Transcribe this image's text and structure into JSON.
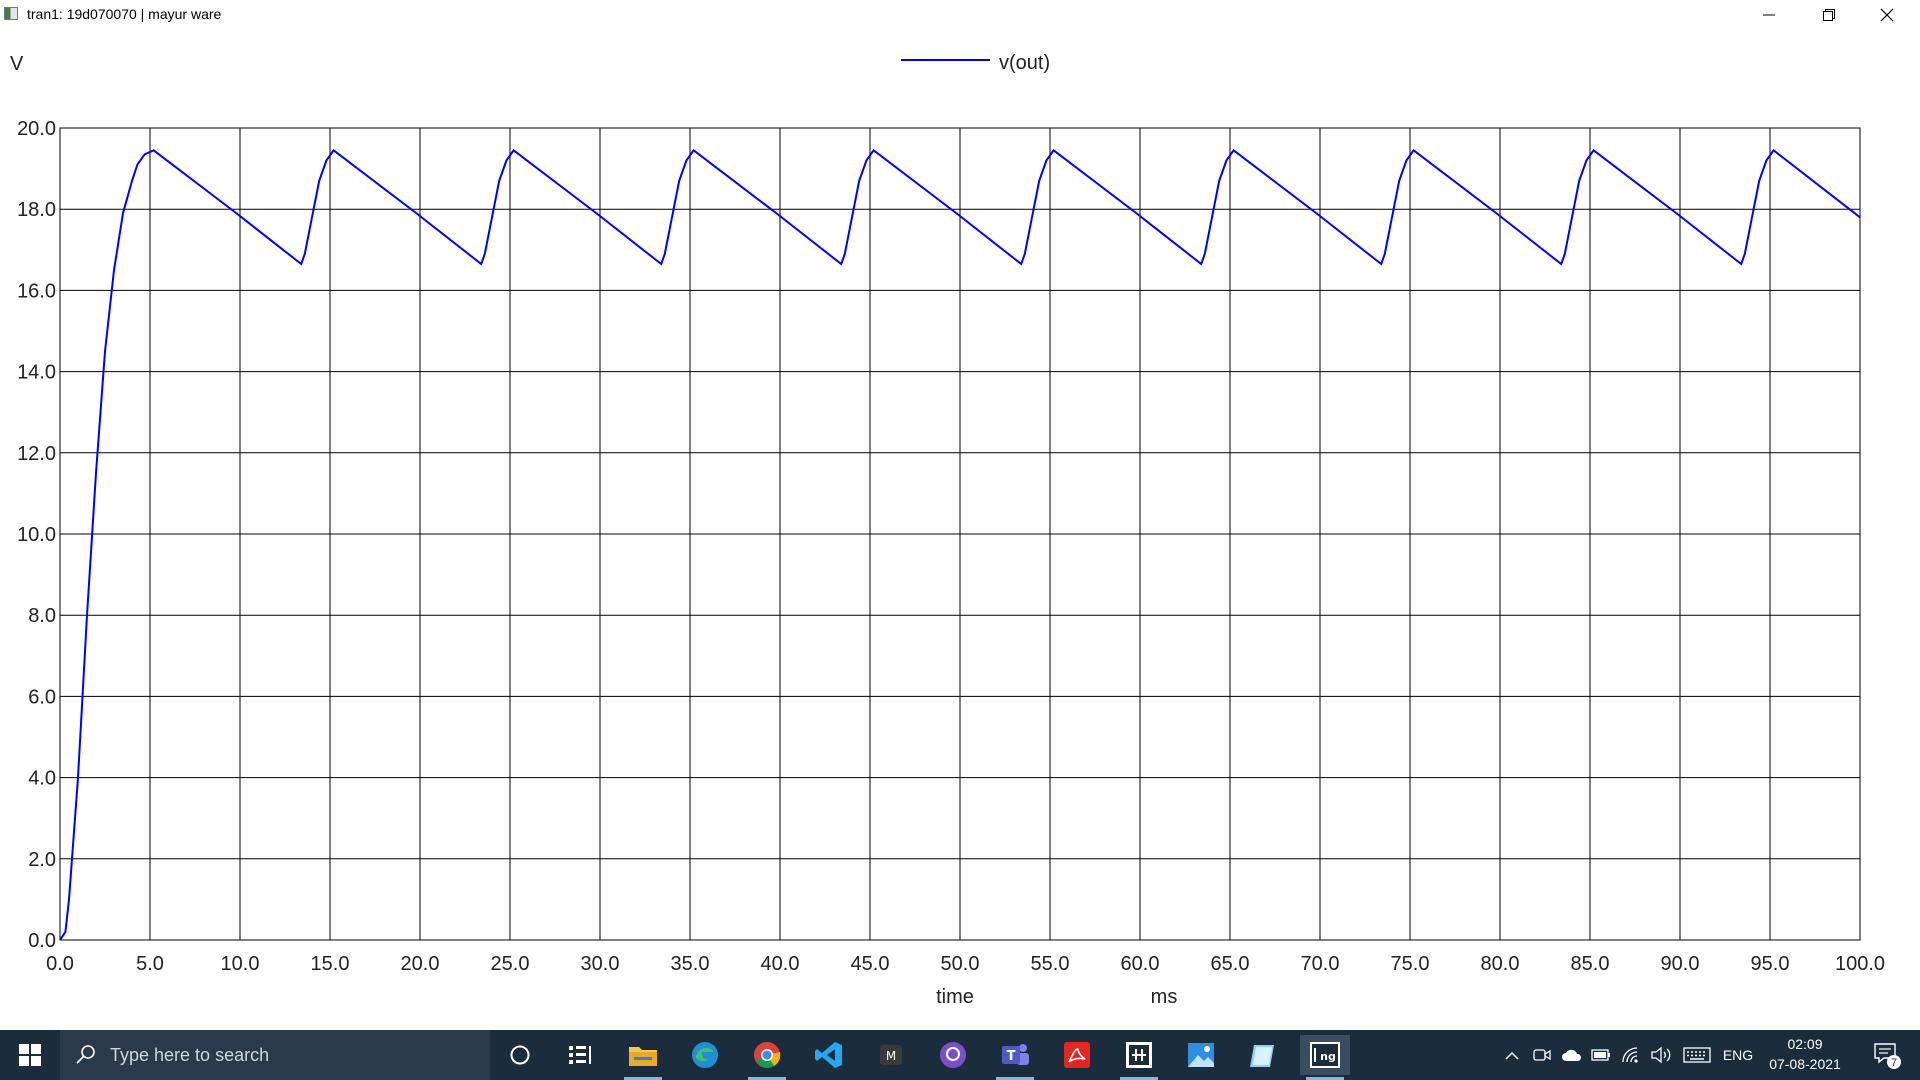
{
  "window": {
    "title": "tran1: 19d070070 | mayur ware",
    "minimize_label": "minimize",
    "maximize_label": "restore",
    "close_label": "close"
  },
  "chart_data": {
    "type": "line",
    "title": "",
    "ylabel": "V",
    "xlabel": "time",
    "xunit": "ms",
    "xlim": [
      0,
      100
    ],
    "ylim": [
      0,
      20
    ],
    "grid": true,
    "legend_position": "top-center",
    "x_ticks": [
      "0.0",
      "5.0",
      "10.0",
      "15.0",
      "20.0",
      "25.0",
      "30.0",
      "35.0",
      "40.0",
      "45.0",
      "50.0",
      "55.0",
      "60.0",
      "65.0",
      "70.0",
      "75.0",
      "80.0",
      "85.0",
      "90.0",
      "95.0",
      "100.0"
    ],
    "y_ticks": [
      "0.0",
      "2.0",
      "4.0",
      "6.0",
      "8.0",
      "10.0",
      "12.0",
      "14.0",
      "16.0",
      "18.0",
      "20.0"
    ],
    "series": [
      {
        "name": "v(out)",
        "color": "#0000ff",
        "x": [
          0.0,
          0.3,
          0.5,
          1.0,
          1.5,
          2.0,
          2.5,
          3.0,
          3.5,
          4.0,
          4.3,
          4.7,
          5.2,
          9.8,
          13.4,
          13.6,
          14.0,
          14.4,
          14.8,
          15.2,
          19.8,
          23.4,
          23.6,
          24.0,
          24.4,
          24.8,
          25.2,
          29.8,
          33.4,
          33.6,
          34.0,
          34.4,
          34.8,
          35.2,
          39.8,
          43.4,
          43.6,
          44.0,
          44.4,
          44.8,
          45.2,
          49.8,
          53.4,
          53.6,
          54.0,
          54.4,
          54.8,
          55.2,
          59.8,
          63.4,
          63.6,
          64.0,
          64.4,
          64.8,
          65.2,
          69.8,
          73.4,
          73.6,
          74.0,
          74.4,
          74.8,
          75.2,
          79.8,
          83.4,
          83.6,
          84.0,
          84.4,
          84.8,
          85.2,
          89.8,
          93.4,
          93.6,
          94.0,
          94.4,
          94.8,
          95.2,
          100.0
        ],
        "values": [
          0.0,
          0.2,
          1.0,
          4.0,
          8.0,
          11.5,
          14.5,
          16.5,
          17.9,
          18.7,
          19.1,
          19.35,
          19.45,
          17.9,
          16.65,
          16.9,
          17.8,
          18.7,
          19.2,
          19.45,
          17.9,
          16.65,
          16.9,
          17.8,
          18.7,
          19.2,
          19.45,
          17.9,
          16.65,
          16.9,
          17.8,
          18.7,
          19.2,
          19.45,
          17.9,
          16.65,
          16.9,
          17.8,
          18.7,
          19.2,
          19.45,
          17.9,
          16.65,
          16.9,
          17.8,
          18.7,
          19.2,
          19.45,
          17.9,
          16.65,
          16.9,
          17.8,
          18.7,
          19.2,
          19.45,
          17.9,
          16.65,
          16.9,
          17.8,
          18.7,
          19.2,
          19.45,
          17.9,
          16.65,
          16.9,
          17.8,
          18.7,
          19.2,
          19.45,
          17.9,
          16.65,
          16.9,
          17.8,
          18.7,
          19.2,
          19.45,
          17.8
        ]
      }
    ]
  },
  "taskbar": {
    "search_placeholder": "Type here to search",
    "language": "ENG",
    "time": "02:09",
    "date": "07-08-2021",
    "notification_count": "7",
    "icons": [
      "cortana-icon",
      "task-view-icon",
      "file-explorer-icon",
      "edge-icon",
      "chrome-icon",
      "vscode-icon",
      "terminal-icon",
      "github-icon",
      "teams-icon",
      "acrobat-icon",
      "circuit-app-icon",
      "photos-icon",
      "notepad-icon",
      "ngspice-icon"
    ]
  }
}
